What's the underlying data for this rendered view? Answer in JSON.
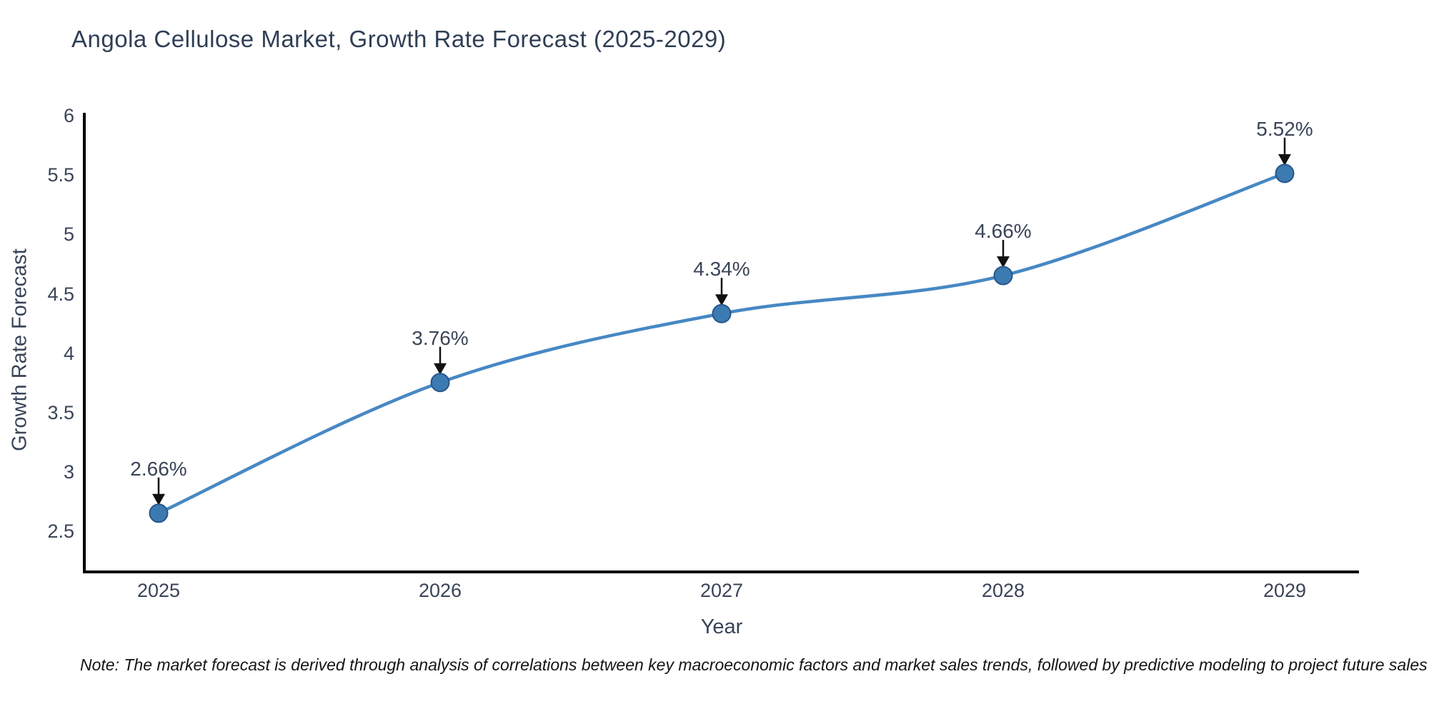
{
  "title": "Angola Cellulose Market, Growth Rate Forecast (2025-2029)",
  "note": "Note: The market forecast is derived through analysis of correlations between key macroeconomic factors and market sales trends, followed by predictive modeling to project future sales",
  "colors": {
    "line": "#4788c4",
    "marker_fill": "#3c7ab2",
    "marker_stroke": "#27578a",
    "axis": "#000000",
    "arrow": "#111111",
    "text": "#3a4458",
    "title_text": "#2f3e55",
    "note_text": "#141414",
    "background": "#ffffff"
  },
  "chart_data": {
    "type": "line",
    "title": "Angola Cellulose Market, Growth Rate Forecast (2025-2029)",
    "xlabel": "Year",
    "ylabel": "Growth Rate Forecast",
    "x": [
      2025,
      2026,
      2027,
      2028,
      2029
    ],
    "values": [
      2.66,
      3.76,
      4.34,
      4.66,
      5.52
    ],
    "point_labels": [
      "2.66%",
      "3.76%",
      "4.34%",
      "4.66%",
      "5.52%"
    ],
    "xtick_labels": [
      "2025",
      "2026",
      "2027",
      "2028",
      "2029"
    ],
    "ytick_values": [
      2.5,
      3,
      3.5,
      4,
      4.5,
      5,
      5.5,
      6
    ],
    "ytick_labels": [
      "2.5",
      "3",
      "3.5",
      "4",
      "4.5",
      "5",
      "5.5",
      "6"
    ],
    "ylim": [
      2.16,
      6.02
    ],
    "xlim": [
      2024.74,
      2029.26
    ],
    "grid": false,
    "legend_position": "none",
    "line_shape": "spline",
    "annotation_style": "percent labels with downward black arrows above each point"
  }
}
